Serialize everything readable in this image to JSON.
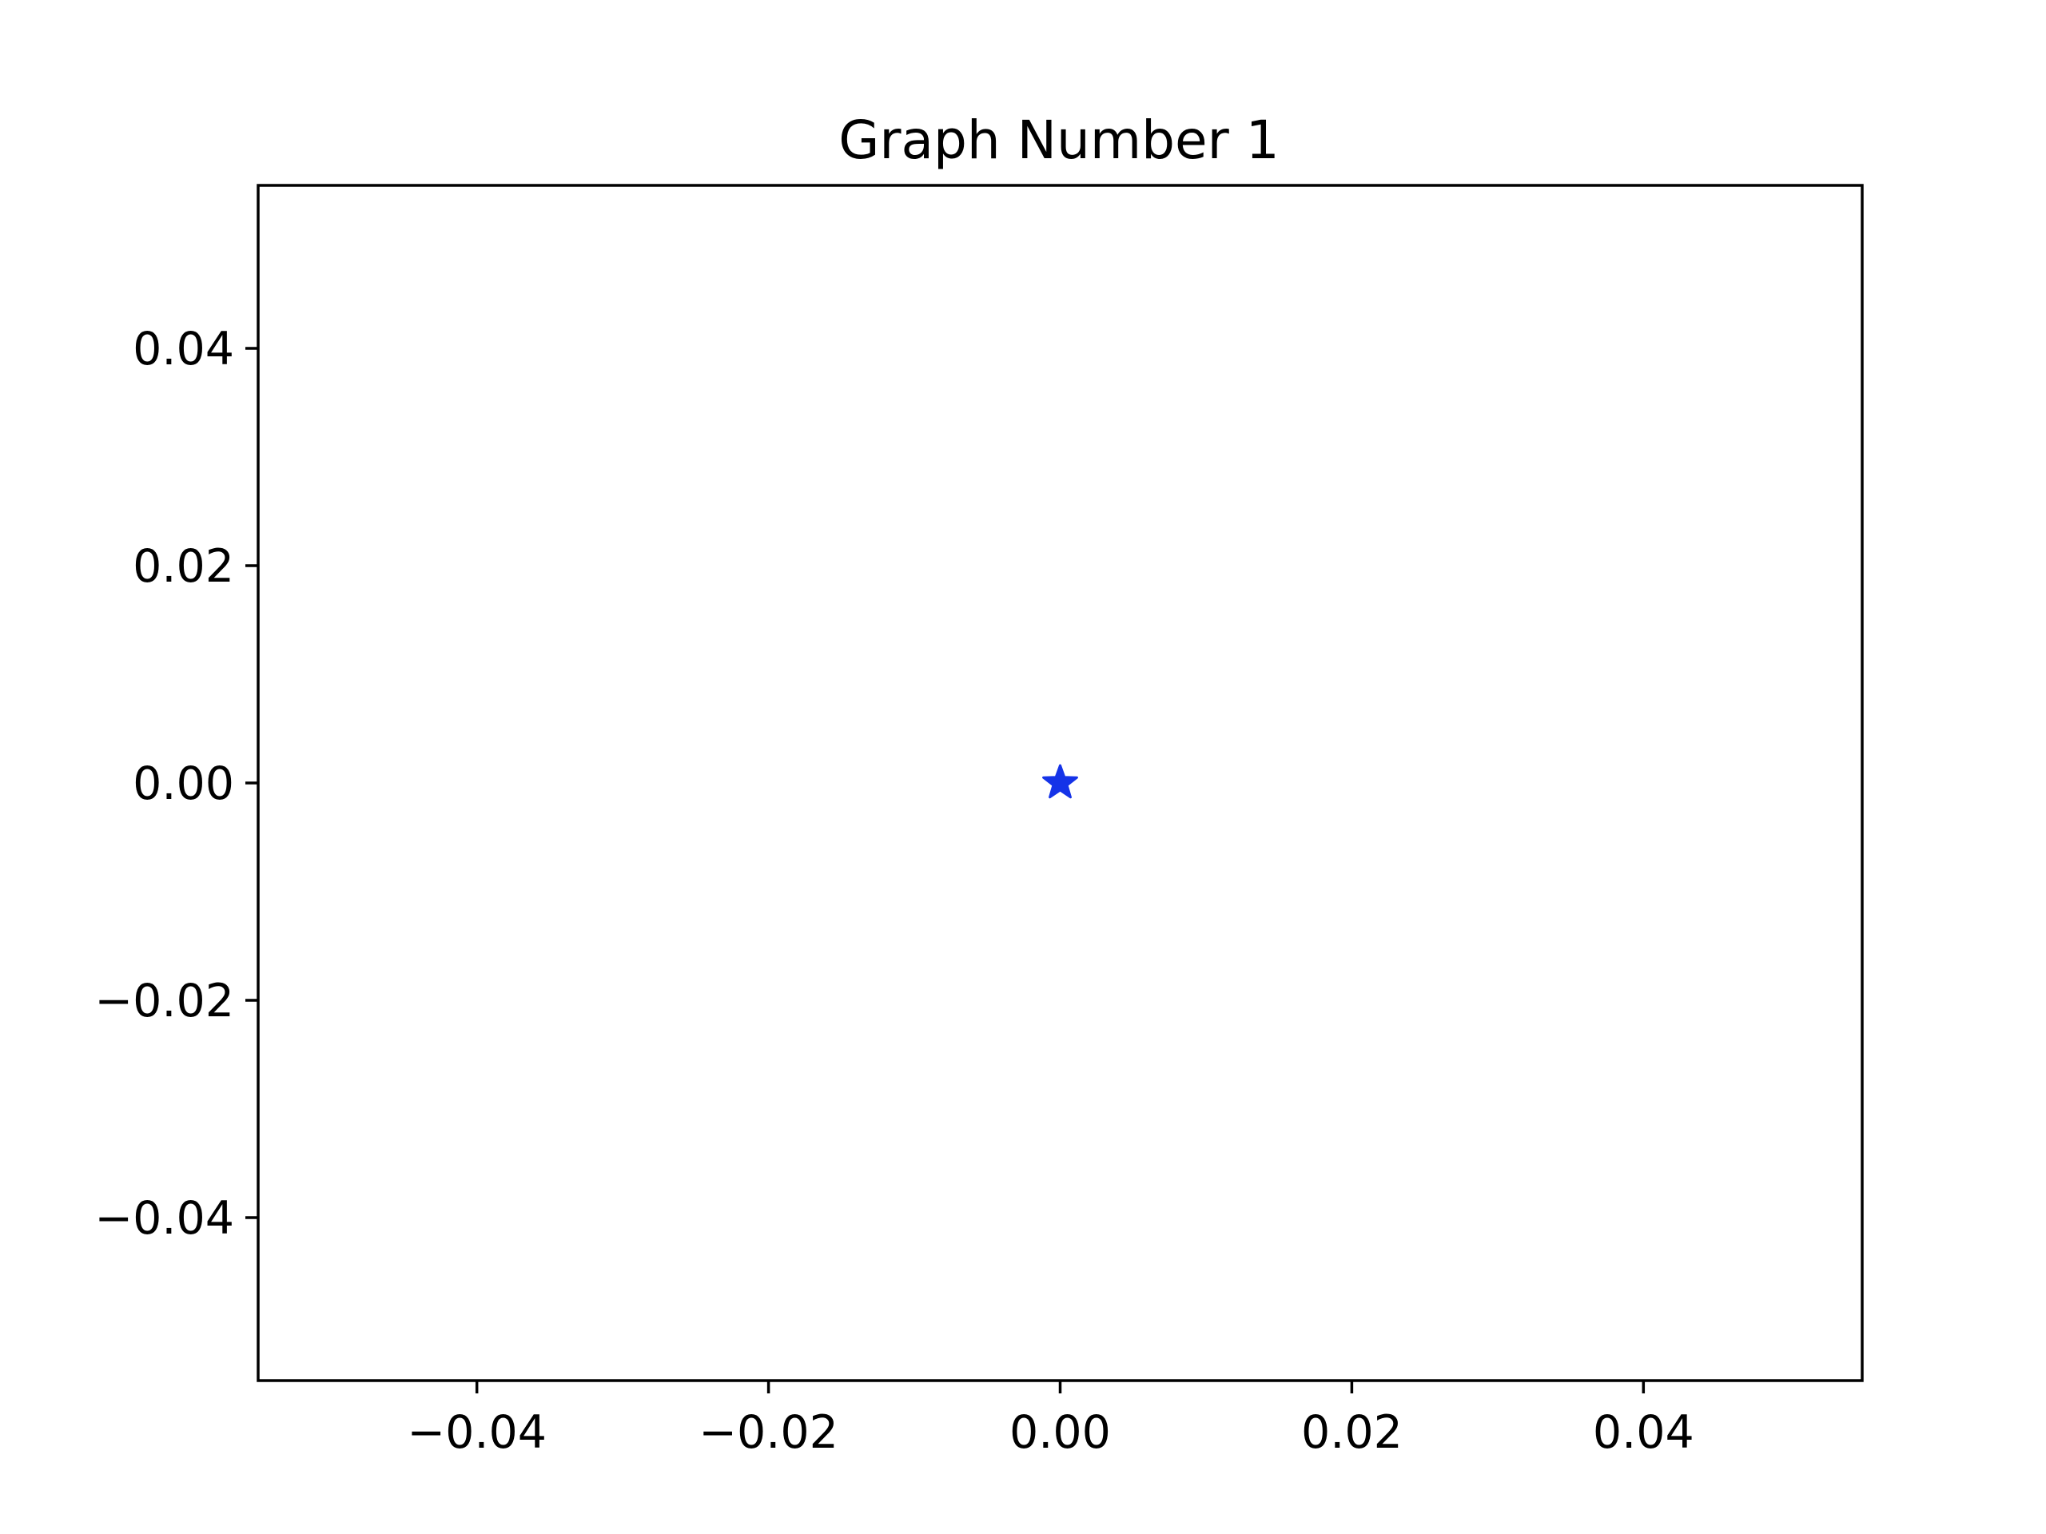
{
  "chart_data": {
    "type": "scatter",
    "title": "Graph Number 1",
    "xlabel": "",
    "ylabel": "",
    "xlim": [
      -0.055,
      0.055
    ],
    "ylim": [
      -0.055,
      0.055
    ],
    "xticks": [
      -0.04,
      -0.02,
      0.0,
      0.02,
      0.04
    ],
    "xtick_labels": [
      "−0.04",
      "−0.02",
      "0.00",
      "0.02",
      "0.04"
    ],
    "yticks": [
      -0.04,
      -0.02,
      0.0,
      0.02,
      0.04
    ],
    "ytick_labels": [
      "−0.04",
      "−0.02",
      "0.00",
      "0.02",
      "0.04"
    ],
    "grid": false,
    "series": [
      {
        "marker": "star",
        "color": "#1533e8",
        "points": [
          {
            "x": 0.0,
            "y": 0.0
          }
        ]
      }
    ]
  }
}
